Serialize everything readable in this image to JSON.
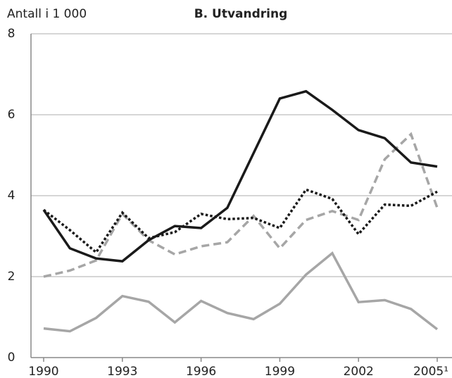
{
  "chart_data": {
    "type": "line",
    "title": "B. Utvandring",
    "ylabel": "Antall i 1 000",
    "x": [
      1990,
      1991,
      1992,
      1993,
      1994,
      1995,
      1996,
      1997,
      1998,
      1999,
      2000,
      2001,
      2002,
      2003,
      2004,
      2005
    ],
    "xlim": [
      1990,
      2005
    ],
    "xticks": [
      1990,
      1993,
      1996,
      1999,
      2002,
      {
        "value": 2005,
        "label": "2005¹"
      }
    ],
    "ylim": [
      0,
      8
    ],
    "yticks": [
      0,
      2,
      4,
      6,
      8
    ],
    "grid": true,
    "series": [
      {
        "color": "#1a1a1a",
        "dash": "solid",
        "values": [
          3.65,
          2.7,
          2.45,
          2.38,
          2.9,
          3.25,
          3.2,
          3.7,
          5.05,
          6.4,
          6.58,
          6.12,
          5.62,
          5.42,
          4.82,
          4.72
        ]
      },
      {
        "color": "#1a1a1a",
        "dash": "dotted",
        "values": [
          3.65,
          3.15,
          2.6,
          3.58,
          2.95,
          3.1,
          3.55,
          3.42,
          3.45,
          3.2,
          4.15,
          3.92,
          3.05,
          3.78,
          3.75,
          4.1
        ]
      },
      {
        "color": "#a6a6a6",
        "dash": "dashed",
        "values": [
          2.0,
          2.15,
          2.4,
          3.55,
          2.9,
          2.55,
          2.75,
          2.85,
          3.5,
          2.7,
          3.4,
          3.62,
          3.4,
          4.9,
          5.52,
          3.7
        ]
      },
      {
        "color": "#a6a6a6",
        "dash": "solid",
        "values": [
          0.72,
          0.65,
          0.98,
          1.52,
          1.38,
          0.87,
          1.4,
          1.1,
          0.95,
          1.33,
          2.05,
          2.58,
          1.37,
          1.42,
          1.2,
          0.7
        ]
      }
    ]
  }
}
